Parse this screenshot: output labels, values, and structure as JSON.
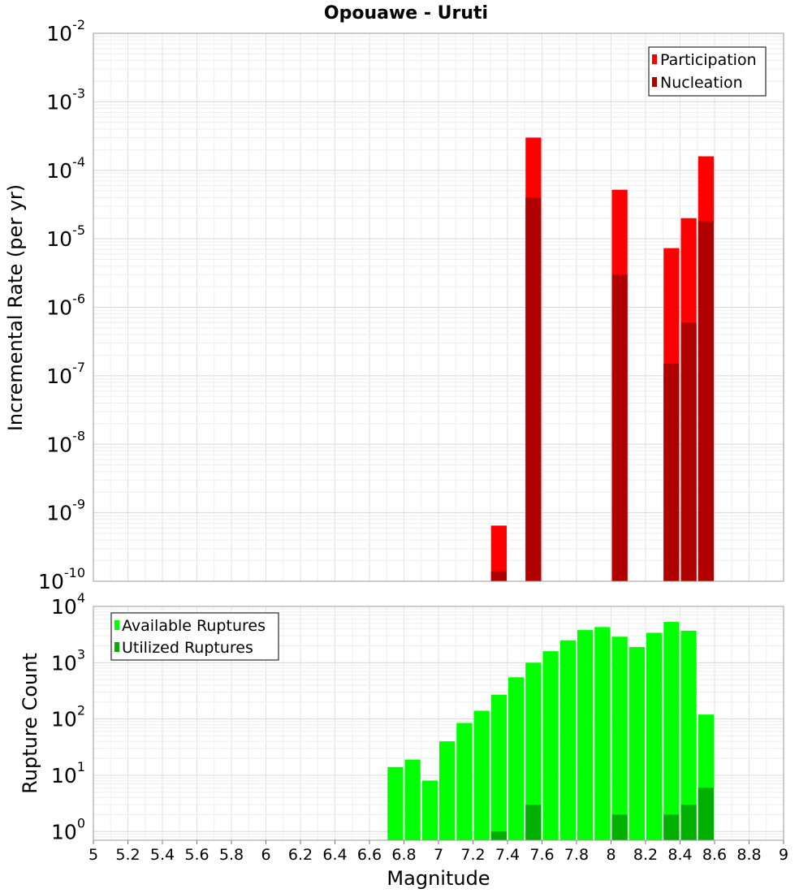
{
  "title": "Opouawe - Uruti",
  "colors": {
    "participation": "#ff0000",
    "nucleation": "#b00000",
    "available": "#00ff00",
    "utilized": "#00b000"
  },
  "chart_data": [
    {
      "type": "bar",
      "title": "Opouawe - Uruti",
      "ylabel": "Incremental Rate (per yr)",
      "yscale": "log",
      "ylim": [
        1e-10,
        0.01
      ],
      "xlim": [
        5,
        9
      ],
      "grid": true,
      "legend_position": "top-right",
      "bar_width": 0.1,
      "series": [
        {
          "name": "Participation",
          "color": "#ff0000",
          "points": [
            {
              "x": 7.35,
              "y": 6.5e-10
            },
            {
              "x": 7.55,
              "y": 0.0003
            },
            {
              "x": 8.05,
              "y": 5.2e-05
            },
            {
              "x": 8.35,
              "y": 7.3e-06
            },
            {
              "x": 8.45,
              "y": 2e-05
            },
            {
              "x": 8.55,
              "y": 0.00016
            }
          ]
        },
        {
          "name": "Nucleation",
          "color": "#b00000",
          "points": [
            {
              "x": 7.35,
              "y": 1.4e-10
            },
            {
              "x": 7.55,
              "y": 4e-05
            },
            {
              "x": 8.05,
              "y": 3e-06
            },
            {
              "x": 8.35,
              "y": 1.5e-07
            },
            {
              "x": 8.45,
              "y": 6e-07
            },
            {
              "x": 8.55,
              "y": 1.8e-05
            }
          ]
        }
      ]
    },
    {
      "type": "bar",
      "xlabel": "Magnitude",
      "ylabel": "Rupture Count",
      "yscale": "log",
      "ylim": [
        0.7,
        10000
      ],
      "xlim": [
        5,
        9
      ],
      "grid": true,
      "legend_position": "top-left",
      "bar_width": 0.1,
      "series": [
        {
          "name": "Available Ruptures",
          "color": "#00ff00",
          "points": [
            {
              "x": 6.75,
              "y": 14
            },
            {
              "x": 6.85,
              "y": 19
            },
            {
              "x": 6.95,
              "y": 8
            },
            {
              "x": 7.05,
              "y": 40
            },
            {
              "x": 7.15,
              "y": 85
            },
            {
              "x": 7.25,
              "y": 140
            },
            {
              "x": 7.35,
              "y": 270
            },
            {
              "x": 7.45,
              "y": 550
            },
            {
              "x": 7.55,
              "y": 1000
            },
            {
              "x": 7.65,
              "y": 1600
            },
            {
              "x": 7.75,
              "y": 2500
            },
            {
              "x": 7.85,
              "y": 3800
            },
            {
              "x": 7.95,
              "y": 4300
            },
            {
              "x": 8.05,
              "y": 2900
            },
            {
              "x": 8.15,
              "y": 1900
            },
            {
              "x": 8.25,
              "y": 3400
            },
            {
              "x": 8.35,
              "y": 5300
            },
            {
              "x": 8.45,
              "y": 3700
            },
            {
              "x": 8.55,
              "y": 120
            }
          ]
        },
        {
          "name": "Utilized Ruptures",
          "color": "#00b000",
          "points": [
            {
              "x": 7.35,
              "y": 1
            },
            {
              "x": 7.55,
              "y": 3
            },
            {
              "x": 8.05,
              "y": 2
            },
            {
              "x": 8.35,
              "y": 2
            },
            {
              "x": 8.45,
              "y": 3
            },
            {
              "x": 8.55,
              "y": 6
            }
          ]
        }
      ]
    }
  ],
  "x_ticks": [
    "5",
    "5.2",
    "5.4",
    "5.6",
    "5.8",
    "6",
    "6.2",
    "6.4",
    "6.6",
    "6.8",
    "7",
    "7.2",
    "7.4",
    "7.6",
    "7.8",
    "8",
    "8.2",
    "8.4",
    "8.6",
    "8.8",
    "9"
  ],
  "top_yticks": [
    {
      "base": "10",
      "exp": "-10"
    },
    {
      "base": "10",
      "exp": "-9"
    },
    {
      "base": "10",
      "exp": "-8"
    },
    {
      "base": "10",
      "exp": "-7"
    },
    {
      "base": "10",
      "exp": "-6"
    },
    {
      "base": "10",
      "exp": "-5"
    },
    {
      "base": "10",
      "exp": "-4"
    },
    {
      "base": "10",
      "exp": "-3"
    },
    {
      "base": "10",
      "exp": "-2"
    }
  ],
  "bottom_yticks": [
    {
      "base": "10",
      "exp": "0"
    },
    {
      "base": "10",
      "exp": "1"
    },
    {
      "base": "10",
      "exp": "2"
    },
    {
      "base": "10",
      "exp": "3"
    },
    {
      "base": "10",
      "exp": "4"
    }
  ]
}
